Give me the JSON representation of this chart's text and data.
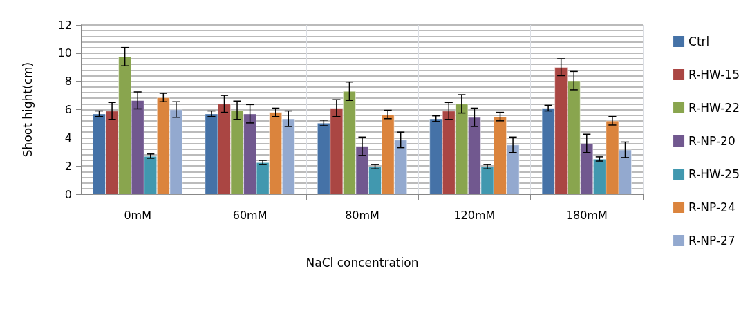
{
  "chart_data": {
    "type": "bar",
    "xlabel": "NaCl concentration",
    "ylabel": "Shoot hight(cm)",
    "categories": [
      "0mM",
      "60mM",
      "80mM",
      "120mM",
      "180mM"
    ],
    "ylim": [
      0,
      12
    ],
    "yticks": [
      0,
      2,
      4,
      6,
      8,
      10,
      12
    ],
    "grid": true,
    "legend": "right",
    "series": [
      {
        "name": "Ctrl",
        "color": "#4572a7",
        "values": [
          5.7,
          5.7,
          5.05,
          5.35,
          6.1
        ],
        "errors": [
          0.2,
          0.2,
          0.2,
          0.2,
          0.2
        ]
      },
      {
        "name": "R-HW-15",
        "color": "#aa4643",
        "values": [
          5.9,
          6.4,
          6.1,
          5.9,
          9.0
        ],
        "errors": [
          0.6,
          0.6,
          0.6,
          0.6,
          0.6
        ]
      },
      {
        "name": "R-HW-22",
        "color": "#89a54e",
        "values": [
          9.75,
          5.95,
          7.3,
          6.4,
          8.05
        ],
        "errors": [
          0.65,
          0.65,
          0.65,
          0.65,
          0.65
        ]
      },
      {
        "name": "R-NP-20",
        "color": "#71588f",
        "values": [
          6.65,
          5.7,
          3.4,
          5.45,
          3.6
        ],
        "errors": [
          0.6,
          0.65,
          0.65,
          0.65,
          0.65
        ]
      },
      {
        "name": "R-HW-25",
        "color": "#4198af",
        "values": [
          2.7,
          2.25,
          1.95,
          1.95,
          2.5
        ],
        "errors": [
          0.15,
          0.15,
          0.15,
          0.15,
          0.15
        ]
      },
      {
        "name": "R-NP-24",
        "color": "#db843d",
        "values": [
          6.85,
          5.8,
          5.65,
          5.5,
          5.2
        ],
        "errors": [
          0.3,
          0.3,
          0.3,
          0.3,
          0.3
        ]
      },
      {
        "name": "R-NP-27",
        "color": "#93a9cf",
        "values": [
          6.0,
          5.35,
          3.85,
          3.5,
          3.15
        ],
        "errors": [
          0.55,
          0.55,
          0.55,
          0.55,
          0.55
        ]
      }
    ]
  }
}
